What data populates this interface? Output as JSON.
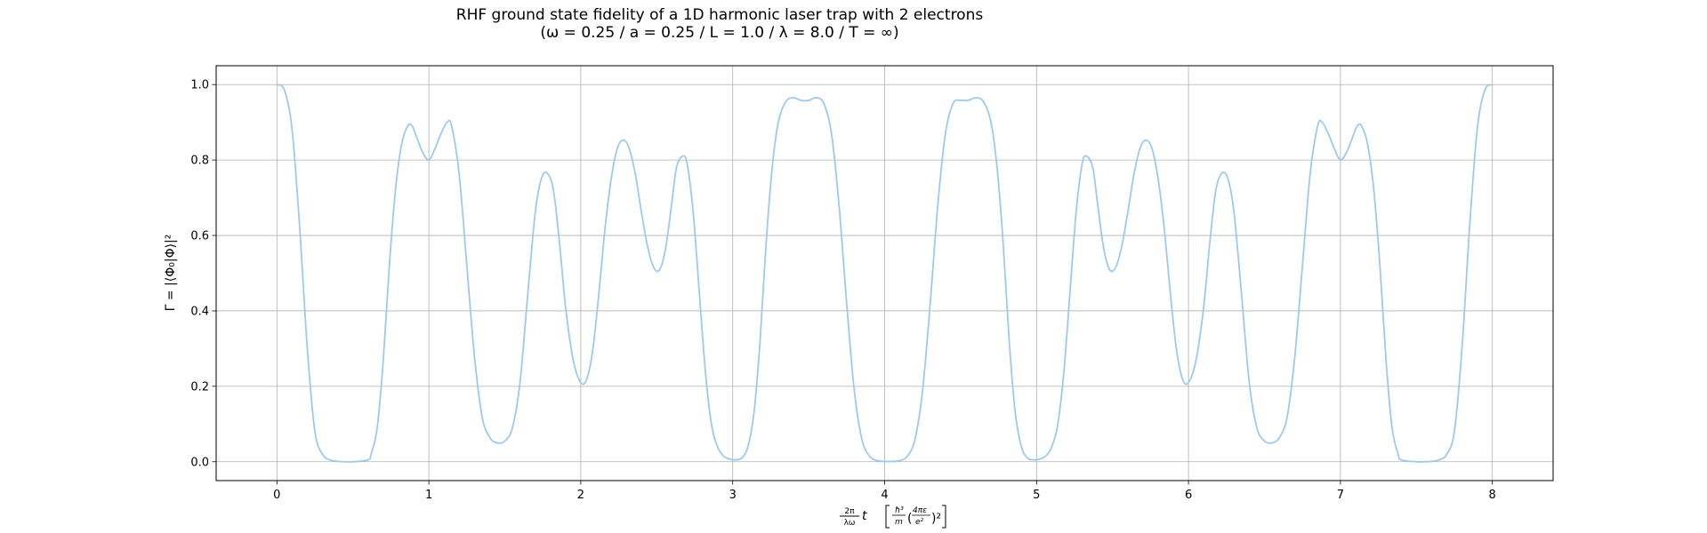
{
  "chart_data": {
    "type": "line",
    "title_line1": "RHF ground state fidelity of a 1D harmonic laser trap with 2 electrons",
    "title_line2": "(ω = 0.25 / a = 0.25 / L = 1.0 / λ = 8.0 / T = ∞)",
    "xlabel_time": "t",
    "xlabel_coef_num": "2π",
    "xlabel_coef_den": "λω",
    "ylabel": "Γ = |⟨Φ₀|Φ⟩|²",
    "xlim": [
      -0.4,
      8.4
    ],
    "ylim": [
      -0.05,
      1.05
    ],
    "xticks": [
      0,
      1,
      2,
      3,
      4,
      5,
      6,
      7,
      8
    ],
    "yticks": [
      0.0,
      0.2,
      0.4,
      0.6,
      0.8,
      1.0
    ],
    "xtick_labels": [
      "0",
      "1",
      "2",
      "3",
      "4",
      "5",
      "6",
      "7",
      "8"
    ],
    "ytick_labels": [
      "0.0",
      "0.2",
      "0.4",
      "0.6",
      "0.8",
      "1.0"
    ],
    "grid": true,
    "line_color": "#9fc9eb",
    "series": [
      {
        "x": [
          0.0,
          0.05,
          0.1,
          0.15,
          0.2,
          0.25,
          0.3,
          0.35,
          0.4,
          0.45,
          0.5,
          0.6,
          0.62,
          0.66,
          0.7,
          0.74,
          0.78,
          0.82,
          0.86,
          0.89,
          0.92,
          0.96,
          1.0,
          1.04,
          1.08,
          1.12,
          1.15,
          1.2,
          1.25,
          1.3,
          1.35,
          1.4,
          1.45,
          1.5,
          1.55,
          1.6,
          1.65,
          1.7,
          1.74,
          1.78,
          1.82,
          1.86,
          1.9,
          1.95,
          2.0,
          2.04,
          2.08,
          2.12,
          2.16,
          2.2,
          2.24,
          2.28,
          2.32,
          2.36,
          2.4,
          2.44,
          2.48,
          2.52,
          2.56,
          2.6,
          2.63,
          2.67,
          2.7,
          2.74,
          2.78,
          2.82,
          2.86,
          2.9,
          2.94,
          2.98,
          3.02,
          3.06,
          3.1,
          3.14,
          3.18,
          3.22,
          3.26,
          3.3,
          3.35,
          3.4,
          3.45,
          3.5,
          3.55,
          3.6,
          3.65,
          3.7,
          3.75,
          3.8,
          3.85,
          3.9,
          3.95,
          4.0,
          4.05,
          4.1,
          4.15,
          4.2,
          4.25,
          4.3,
          4.35,
          4.4,
          4.45,
          4.5,
          4.55,
          4.6,
          4.65,
          4.7,
          4.74,
          4.78,
          4.82,
          4.86,
          4.9,
          4.94,
          4.98,
          5.02,
          5.06,
          5.1,
          5.14,
          5.18,
          5.22,
          5.26,
          5.3,
          5.33,
          5.37,
          5.4,
          5.44,
          5.48,
          5.52,
          5.56,
          5.6,
          5.64,
          5.68,
          5.72,
          5.76,
          5.8,
          5.84,
          5.88,
          5.92,
          5.96,
          6.0,
          6.05,
          6.1,
          6.14,
          6.18,
          6.22,
          6.26,
          6.3,
          6.35,
          6.4,
          6.45,
          6.5,
          6.55,
          6.6,
          6.65,
          6.7,
          6.75,
          6.8,
          6.85,
          6.88,
          6.92,
          6.96,
          7.0,
          7.04,
          7.08,
          7.11,
          7.14,
          7.18,
          7.22,
          7.26,
          7.3,
          7.34,
          7.38,
          7.4,
          7.5,
          7.55,
          7.6,
          7.65,
          7.7,
          7.75,
          7.8,
          7.85,
          7.9,
          7.95,
          8.0
        ],
        "y": [
          1.0,
          0.985,
          0.88,
          0.62,
          0.3,
          0.08,
          0.02,
          0.005,
          0.001,
          0.0,
          0.0,
          0.005,
          0.02,
          0.09,
          0.27,
          0.52,
          0.72,
          0.84,
          0.89,
          0.89,
          0.86,
          0.82,
          0.8,
          0.83,
          0.87,
          0.9,
          0.89,
          0.76,
          0.52,
          0.28,
          0.12,
          0.065,
          0.05,
          0.055,
          0.09,
          0.21,
          0.44,
          0.66,
          0.75,
          0.765,
          0.72,
          0.58,
          0.41,
          0.27,
          0.21,
          0.22,
          0.3,
          0.45,
          0.62,
          0.75,
          0.83,
          0.853,
          0.83,
          0.76,
          0.66,
          0.57,
          0.515,
          0.51,
          0.57,
          0.69,
          0.78,
          0.81,
          0.79,
          0.66,
          0.45,
          0.24,
          0.1,
          0.04,
          0.015,
          0.007,
          0.005,
          0.01,
          0.04,
          0.13,
          0.32,
          0.58,
          0.78,
          0.9,
          0.955,
          0.965,
          0.958,
          0.958,
          0.965,
          0.95,
          0.87,
          0.68,
          0.42,
          0.19,
          0.06,
          0.015,
          0.003,
          0.001,
          0.001,
          0.003,
          0.015,
          0.06,
          0.19,
          0.42,
          0.68,
          0.87,
          0.95,
          0.958,
          0.958,
          0.965,
          0.955,
          0.9,
          0.78,
          0.58,
          0.32,
          0.13,
          0.04,
          0.01,
          0.005,
          0.007,
          0.015,
          0.04,
          0.1,
          0.24,
          0.45,
          0.66,
          0.79,
          0.81,
          0.78,
          0.69,
          0.57,
          0.51,
          0.515,
          0.57,
          0.66,
          0.76,
          0.83,
          0.853,
          0.83,
          0.75,
          0.62,
          0.45,
          0.3,
          0.22,
          0.21,
          0.27,
          0.41,
          0.58,
          0.72,
          0.765,
          0.75,
          0.66,
          0.44,
          0.21,
          0.09,
          0.055,
          0.05,
          0.065,
          0.12,
          0.28,
          0.52,
          0.76,
          0.89,
          0.9,
          0.87,
          0.83,
          0.8,
          0.82,
          0.86,
          0.89,
          0.89,
          0.84,
          0.72,
          0.52,
          0.27,
          0.09,
          0.02,
          0.005,
          0.0,
          0.0,
          0.001,
          0.005,
          0.02,
          0.08,
          0.3,
          0.62,
          0.88,
          0.985,
          1.0
        ]
      }
    ]
  }
}
